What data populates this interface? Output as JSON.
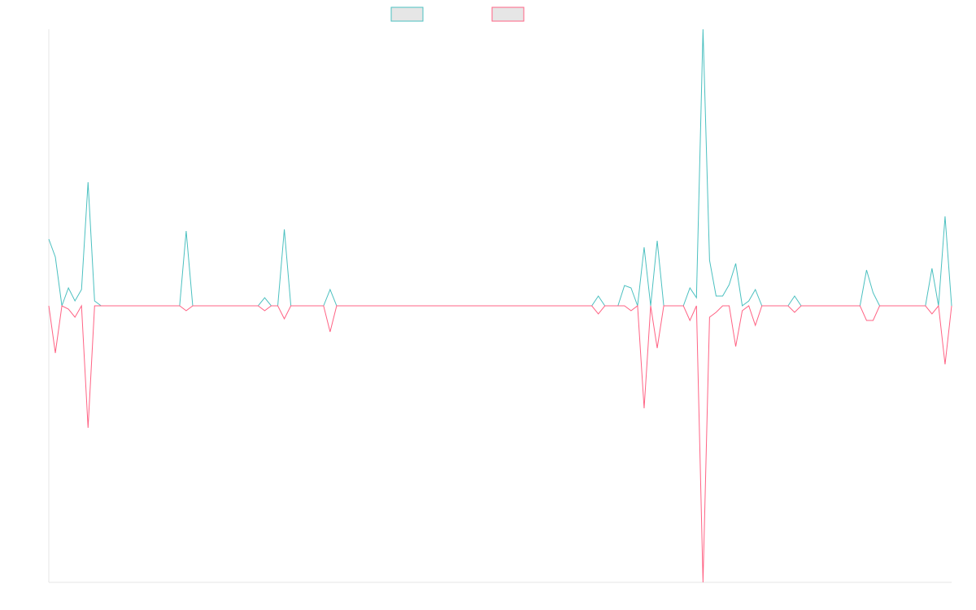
{
  "chart_data": {
    "type": "line",
    "ylim": [
      -340,
      340
    ],
    "series": [
      {
        "color": "#4bc0c0",
        "values": [
          82,
          60,
          0,
          22,
          6,
          20,
          152,
          6,
          0,
          0,
          0,
          0,
          0,
          0,
          0,
          0,
          0,
          0,
          0,
          0,
          0,
          92,
          0,
          0,
          0,
          0,
          0,
          0,
          0,
          0,
          0,
          0,
          0,
          10,
          0,
          0,
          94,
          0,
          0,
          0,
          0,
          0,
          0,
          20,
          0,
          0,
          0,
          0,
          0,
          0,
          0,
          0,
          0,
          0,
          0,
          0,
          0,
          0,
          0,
          0,
          0,
          0,
          0,
          0,
          0,
          0,
          0,
          0,
          0,
          0,
          0,
          0,
          0,
          0,
          0,
          0,
          0,
          0,
          0,
          0,
          0,
          0,
          0,
          0,
          12,
          0,
          0,
          0,
          25,
          22,
          0,
          72,
          0,
          80,
          0,
          0,
          0,
          0,
          22,
          10,
          340,
          56,
          12,
          12,
          26,
          52,
          0,
          6,
          20,
          0,
          0,
          0,
          0,
          0,
          12,
          0,
          0,
          0,
          0,
          0,
          0,
          0,
          0,
          0,
          0,
          44,
          16,
          0,
          0,
          0,
          0,
          0,
          0,
          0,
          0,
          46,
          0,
          110,
          0
        ]
      },
      {
        "color": "#ff6384",
        "values": [
          0,
          -58,
          0,
          -4,
          -14,
          0,
          -150,
          0,
          0,
          0,
          0,
          0,
          0,
          0,
          0,
          0,
          0,
          0,
          0,
          0,
          0,
          -6,
          0,
          0,
          0,
          0,
          0,
          0,
          0,
          0,
          0,
          0,
          0,
          -6,
          0,
          0,
          -16,
          0,
          0,
          0,
          0,
          0,
          0,
          -32,
          0,
          0,
          0,
          0,
          0,
          0,
          0,
          0,
          0,
          0,
          0,
          0,
          0,
          0,
          0,
          0,
          0,
          0,
          0,
          0,
          0,
          0,
          0,
          0,
          0,
          0,
          0,
          0,
          0,
          0,
          0,
          0,
          0,
          0,
          0,
          0,
          0,
          0,
          0,
          0,
          -10,
          0,
          0,
          0,
          0,
          -6,
          0,
          -126,
          0,
          -52,
          0,
          0,
          0,
          0,
          -18,
          0,
          -340,
          -14,
          -8,
          0,
          0,
          -50,
          -6,
          0,
          -24,
          0,
          0,
          0,
          0,
          0,
          -8,
          0,
          0,
          0,
          0,
          0,
          0,
          0,
          0,
          0,
          0,
          -18,
          -18,
          0,
          0,
          0,
          0,
          0,
          0,
          0,
          0,
          -10,
          0,
          -72,
          0
        ]
      }
    ]
  }
}
